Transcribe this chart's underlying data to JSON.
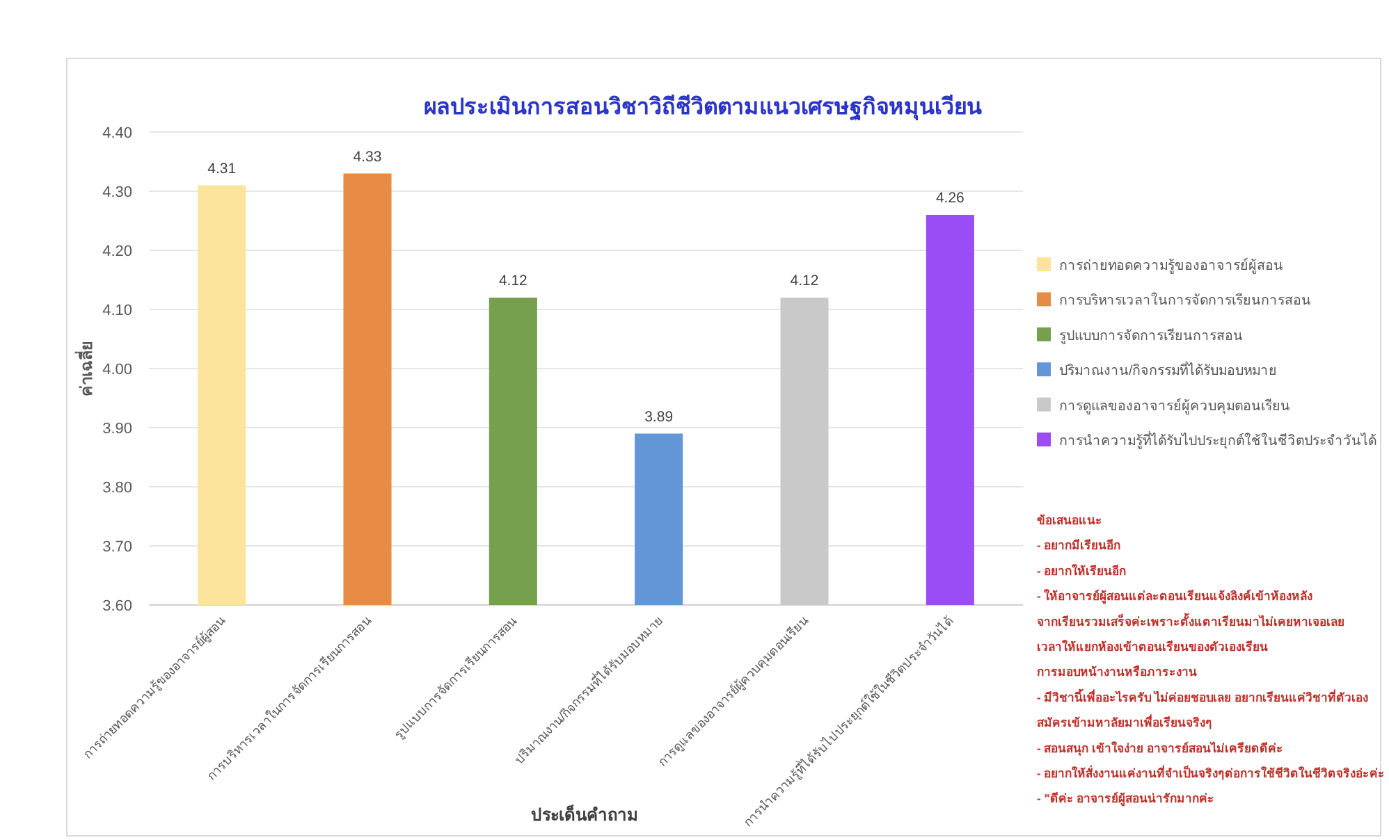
{
  "chart_data": {
    "type": "bar",
    "title": "ผลประเมินการสอนวิชาวิถีชีวิตตามแนวเศรษฐกิจหมุนเวียน",
    "xlabel": "ประเด็นคำถาม",
    "ylabel": "ค่าเฉลี่ย",
    "categories": [
      "การถ่ายทอดความรู้ของอาจารย์ผู้สอน",
      "การบริหารเวลาในการจัดการเรียนการสอน",
      "รูปแบบการจัดการเรียนการสอน",
      "ปริมาณงาน/กิจกรรมที่ได้รับมอบหมาย",
      "การดูแลของอาจารย์ผู้ควบคุมตอนเรียน",
      "การนำความรู้ที่ได้รับไปประยุกต์ใช้ในชีวิตประจำวันได้"
    ],
    "series": [
      {
        "name": "การถ่ายทอดความรู้ของอาจารย์ผู้สอน",
        "color": "#fde49c",
        "values": [
          4.31,
          null,
          null,
          null,
          null,
          null
        ]
      },
      {
        "name": "การบริหารเวลาในการจัดการเรียนการสอน",
        "color": "#e88b45",
        "values": [
          null,
          4.33,
          null,
          null,
          null,
          null
        ]
      },
      {
        "name": "รูปแบบการจัดการเรียนการสอน",
        "color": "#77a04e",
        "values": [
          null,
          null,
          4.12,
          null,
          null,
          null
        ]
      },
      {
        "name": "ปริมาณงาน/กิจกรรมที่ได้รับมอบหมาย",
        "color": "#6396d6",
        "values": [
          null,
          null,
          null,
          3.89,
          null,
          null
        ]
      },
      {
        "name": "การดูแลของอาจารย์ผู้ควบคุมตอนเรียน",
        "color": "#c9c9c9",
        "values": [
          null,
          null,
          null,
          null,
          4.12,
          null
        ]
      },
      {
        "name": "การนำความรู้ที่ได้รับไปประยุกต์ใช้ในชีวิตประจำวันได้",
        "color": "#9b4df5",
        "values": [
          null,
          null,
          null,
          null,
          null,
          4.26
        ]
      }
    ],
    "ylim": [
      3.6,
      4.4
    ],
    "yticks": [
      {
        "value": 3.6,
        "label": "3.60"
      },
      {
        "value": 3.7,
        "label": "3.70"
      },
      {
        "value": 3.8,
        "label": "3.80"
      },
      {
        "value": 3.9,
        "label": "3.90"
      },
      {
        "value": 4.0,
        "label": "4.00"
      },
      {
        "value": 4.1,
        "label": "4.10"
      },
      {
        "value": 4.2,
        "label": "4.20"
      },
      {
        "value": 4.3,
        "label": "4.30"
      },
      {
        "value": 4.4,
        "label": "4.40"
      }
    ],
    "grid": "y",
    "legend": "right",
    "data_labels": true,
    "annotations": [
      "ข้อเสนอแนะ",
      "- อยากมีเรียนอีก",
      "- อยากให้เรียนอีก",
      "- ให้อาจารย์ผู้สอนแต่ละตอนเรียนแจ้งลิงค์เข้าห้องหลัง",
      "จากเรียนรวมเสร็จค่ะเพราะตั้งแตาเรียนมาไม่เคยหาเจอเลย",
      "เวลาให้แยกห้องเข้าตอนเรียนของตัวเองเรียน",
      "การมอบหน้างานหรือภาระงาน",
      "- มีวิชานี้เพื่ออะไรครับ ไม่ค่อยชอบเลย อยากเรียนแค่วิชาที่ตัวเอง",
      "สมัครเข้ามหาลัยมาเพื่อเรียนจริงๆ",
      "- สอนสนุก เข้าใจง่าย อาจารย์สอนไม่เครียดดีค่ะ",
      "- อยากให้สั่งงานแค่งานที่จำเป็นจริงๆต่อการใช้ชีวิตในชีวิตจริงอ่ะค่ะ",
      "- \"ดีค่ะ อาจารย์ผู้สอนน่ารักมากค่ะ"
    ]
  }
}
